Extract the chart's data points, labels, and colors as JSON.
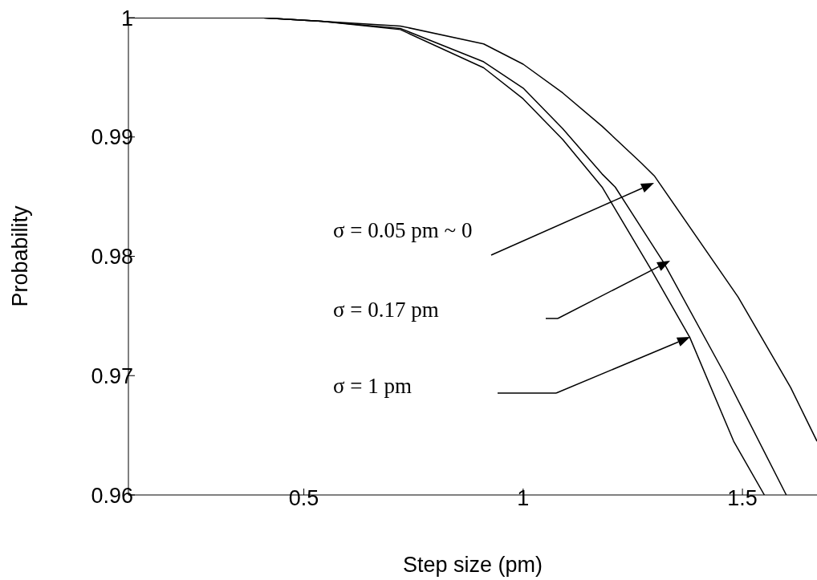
{
  "chart_data": {
    "type": "line",
    "xlabel": "Step size (pm)",
    "ylabel": "Probability",
    "xlim": [
      0.1,
      1.67
    ],
    "xticks": [
      0.5,
      1,
      1.5
    ],
    "ylim": [
      0.96,
      1
    ],
    "yticks": [
      0.96,
      0.97,
      0.98,
      0.99,
      1
    ],
    "grid": false,
    "legend": false,
    "marker": "none",
    "line_style": "solid",
    "series": [
      {
        "color": "#000000",
        "x": [
          0.1,
          0.4,
          0.54,
          0.72,
          0.91,
          1.0,
          1.09,
          1.18,
          1.27,
          1.3,
          1.49,
          1.61,
          1.67
        ],
        "values": [
          1,
          1,
          0.9997,
          0.9993,
          0.9978,
          0.9961,
          0.9937,
          0.9909,
          0.9878,
          0.9867,
          0.9766,
          0.969,
          0.9645
        ]
      },
      {
        "color": "#000000",
        "x": [
          0.1,
          0.4,
          0.54,
          0.72,
          0.91,
          1.0,
          1.09,
          1.18,
          1.21,
          1.32,
          1.46,
          1.6
        ],
        "values": [
          1,
          1,
          0.9997,
          0.9991,
          0.9963,
          0.9941,
          0.9907,
          0.9869,
          0.9858,
          0.9795,
          0.9701,
          0.96
        ]
      },
      {
        "color": "#000000",
        "x": [
          0.1,
          0.4,
          0.54,
          0.72,
          0.91,
          1.0,
          1.09,
          1.18,
          1.29,
          1.38,
          1.48,
          1.55
        ],
        "values": [
          1,
          1,
          0.9997,
          0.999,
          0.9958,
          0.9932,
          0.9898,
          0.9858,
          0.979,
          0.9732,
          0.9645,
          0.96
        ]
      }
    ],
    "annotations": [
      "σ = 0.05 pm ~ 0",
      "σ = 0.17 pm",
      "σ = 1 pm"
    ]
  }
}
